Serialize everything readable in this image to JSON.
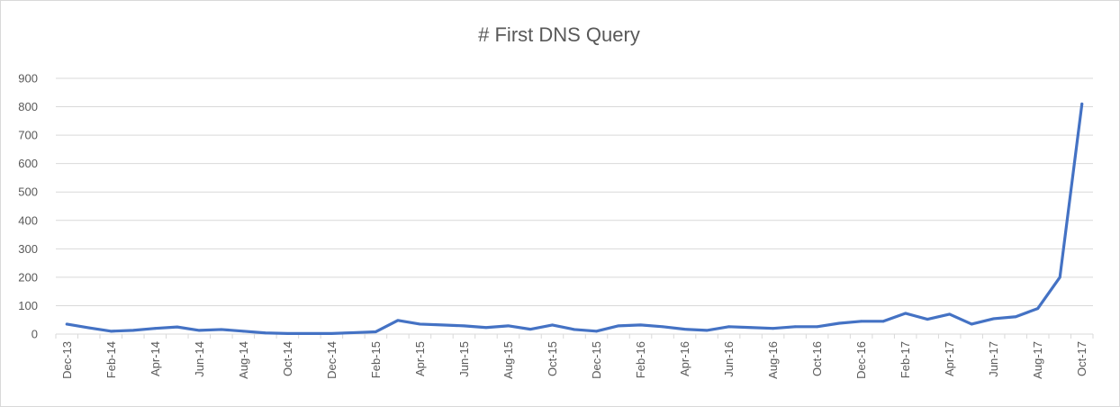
{
  "chart_data": {
    "type": "line",
    "title": "# First DNS Query",
    "xlabel": "",
    "ylabel": "",
    "ylim": [
      0,
      900
    ],
    "yticks": [
      "0",
      "100",
      "200",
      "300",
      "400",
      "500",
      "600",
      "700",
      "800",
      "900"
    ],
    "legend": "none",
    "grid": "horizontal",
    "colors": {
      "line": "#4472c4",
      "grid": "#d9d9d9",
      "text": "#595959"
    },
    "categories": [
      "Dec-13",
      "Jan-14",
      "Feb-14",
      "Mar-14",
      "Apr-14",
      "May-14",
      "Jun-14",
      "Jul-14",
      "Aug-14",
      "Sep-14",
      "Oct-14",
      "Nov-14",
      "Dec-14",
      "Jan-15",
      "Feb-15",
      "Mar-15",
      "Apr-15",
      "May-15",
      "Jun-15",
      "Jul-15",
      "Aug-15",
      "Sep-15",
      "Oct-15",
      "Nov-15",
      "Dec-15",
      "Jan-16",
      "Feb-16",
      "Mar-16",
      "Apr-16",
      "May-16",
      "Jun-16",
      "Jul-16",
      "Aug-16",
      "Sep-16",
      "Oct-16",
      "Nov-16",
      "Dec-16",
      "Jan-17",
      "Feb-17",
      "Mar-17",
      "Apr-17",
      "May-17",
      "Jun-17",
      "Jul-17",
      "Aug-17",
      "Sep-17",
      "Oct-17"
    ],
    "x_tick_labels": [
      "Dec-13",
      "Feb-14",
      "Apr-14",
      "Jun-14",
      "Aug-14",
      "Oct-14",
      "Dec-14",
      "Feb-15",
      "Apr-15",
      "Jun-15",
      "Aug-15",
      "Oct-15",
      "Dec-15",
      "Feb-16",
      "Apr-16",
      "Jun-16",
      "Aug-16",
      "Oct-16",
      "Dec-16",
      "Feb-17",
      "Apr-17",
      "Jun-17",
      "Aug-17",
      "Oct-17"
    ],
    "series": [
      {
        "values": [
          35,
          22,
          10,
          13,
          20,
          25,
          13,
          16,
          10,
          4,
          2,
          2,
          2,
          5,
          8,
          48,
          35,
          32,
          29,
          23,
          29,
          17,
          32,
          16,
          10,
          29,
          32,
          26,
          17,
          13,
          26,
          23,
          20,
          26,
          26,
          38,
          45,
          45,
          73,
          52,
          70,
          35,
          54,
          61,
          90,
          200,
          810
        ]
      }
    ]
  }
}
